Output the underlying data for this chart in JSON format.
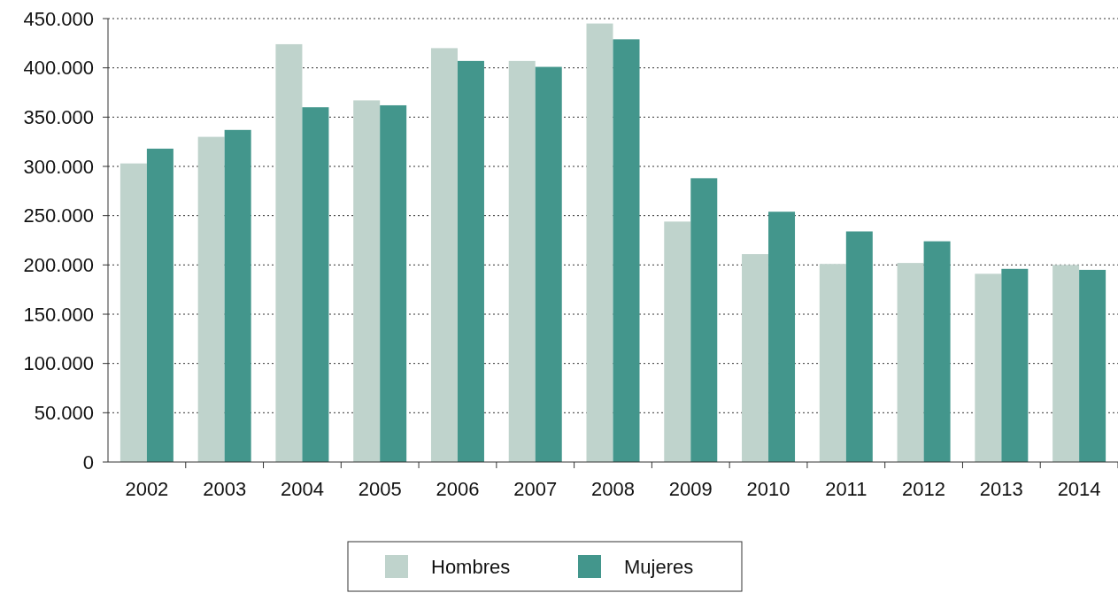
{
  "chart_data": {
    "type": "bar",
    "categories": [
      "2002",
      "2003",
      "2004",
      "2005",
      "2006",
      "2007",
      "2008",
      "2009",
      "2010",
      "2011",
      "2012",
      "2013",
      "2014"
    ],
    "series": [
      {
        "name": "Hombres",
        "color": "#bfd3cc",
        "values": [
          303000,
          330000,
          424000,
          367000,
          420000,
          407000,
          445000,
          244000,
          211000,
          201000,
          202000,
          191000,
          200000
        ]
      },
      {
        "name": "Mujeres",
        "color": "#43968c",
        "values": [
          318000,
          337000,
          360000,
          362000,
          407000,
          401000,
          429000,
          288000,
          254000,
          234000,
          224000,
          196000,
          195000
        ]
      }
    ],
    "ylim": [
      0,
      450000
    ],
    "yticks": [
      {
        "value": 0,
        "label": "0"
      },
      {
        "value": 50000,
        "label": "50.000"
      },
      {
        "value": 100000,
        "label": "100.000"
      },
      {
        "value": 150000,
        "label": "150.000"
      },
      {
        "value": 200000,
        "label": "200.000"
      },
      {
        "value": 250000,
        "label": "250.000"
      },
      {
        "value": 300000,
        "label": "300.000"
      },
      {
        "value": 350000,
        "label": "350.000"
      },
      {
        "value": 400000,
        "label": "400.000"
      },
      {
        "value": 450000,
        "label": "450.000"
      }
    ],
    "grid": "y",
    "legend": "bottom"
  }
}
